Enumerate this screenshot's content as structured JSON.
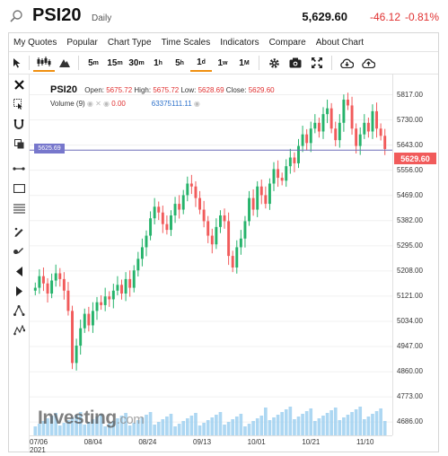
{
  "header": {
    "symbol": "PSI20",
    "interval": "Daily",
    "last": "5,629.60",
    "change": "-46.12",
    "change_pct": "-0.81%"
  },
  "menu": [
    "My Quotes",
    "Popular",
    "Chart Type",
    "Time Scales",
    "Indicators",
    "Compare",
    "About Chart"
  ],
  "toolbar": {
    "timescales": [
      {
        "label": "5",
        "unit": "m"
      },
      {
        "label": "15",
        "unit": "m"
      },
      {
        "label": "30",
        "unit": "m"
      },
      {
        "label": "1",
        "unit": "h"
      },
      {
        "label": "5",
        "unit": "h"
      },
      {
        "label": "1",
        "unit": "d"
      },
      {
        "label": "1",
        "unit": "w"
      },
      {
        "label": "1",
        "unit": "M"
      }
    ],
    "active_timescale": "1d"
  },
  "legend": {
    "symbol": "PSI20",
    "open_label": "Open:",
    "open": "5675.72",
    "high_label": "High:",
    "high": "5675.72",
    "low_label": "Low:",
    "low": "5628.69",
    "close_label": "Close:",
    "close": "5629.60",
    "volume_label": "Volume (9)",
    "volume_ma": "0.00",
    "volume": "63375111.11"
  },
  "price_labels": {
    "last_price": "5629.60",
    "crosshair_price": "5625.69"
  },
  "brand": {
    "name": "Investing",
    "suffix": ".com"
  },
  "colors": {
    "up": "#26b36b",
    "down": "#f15b5b",
    "crosshair": "#6b6bb8",
    "volume": "#9fd0f0"
  },
  "chart_data": {
    "type": "candlestick",
    "y_ticks": [
      "5817.00",
      "5730.00",
      "5643.00",
      "5556.00",
      "5469.00",
      "5382.00",
      "5295.00",
      "5208.00",
      "5121.00",
      "5034.00",
      "4947.00",
      "4860.00",
      "4773.00",
      "4686.00"
    ],
    "x_ticks": [
      {
        "label": "07/06",
        "sub": "2021"
      },
      {
        "label": "08/04",
        "sub": ""
      },
      {
        "label": "08/24",
        "sub": ""
      },
      {
        "label": "09/13",
        "sub": ""
      },
      {
        "label": "10/01",
        "sub": ""
      },
      {
        "label": "10/21",
        "sub": ""
      },
      {
        "label": "11/10",
        "sub": ""
      }
    ],
    "ylim": [
      4640,
      5890
    ],
    "closes": [
      5150,
      5190,
      5165,
      5130,
      5175,
      5200,
      5180,
      5140,
      5070,
      4890,
      4950,
      5010,
      5060,
      5020,
      5070,
      5100,
      5090,
      5120,
      5110,
      5140,
      5160,
      5130,
      5180,
      5150,
      5210,
      5250,
      5290,
      5330,
      5390,
      5430,
      5410,
      5370,
      5350,
      5400,
      5440,
      5420,
      5470,
      5510,
      5500,
      5460,
      5420,
      5380,
      5330,
      5300,
      5360,
      5400,
      5380,
      5260,
      5220,
      5290,
      5320,
      5380,
      5460,
      5420,
      5500,
      5470,
      5440,
      5510,
      5560,
      5530,
      5520,
      5570,
      5600,
      5580,
      5640,
      5680,
      5650,
      5700,
      5720,
      5690,
      5750,
      5770,
      5700,
      5660,
      5720,
      5800,
      5780,
      5700,
      5640,
      5680,
      5720,
      5690,
      5760,
      5700,
      5675,
      5629.6
    ]
  }
}
